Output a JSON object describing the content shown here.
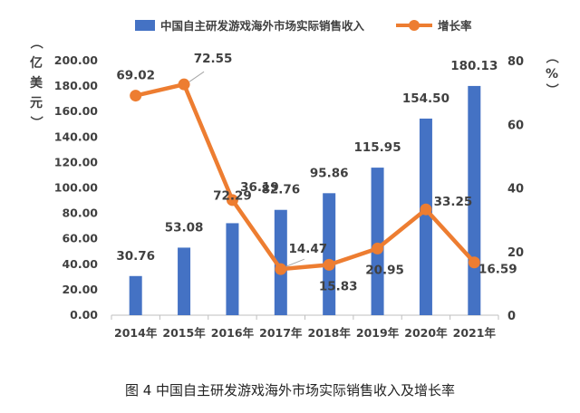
{
  "chart_data": {
    "type": "bar",
    "categories": [
      "2014年",
      "2015年",
      "2016年",
      "2017年",
      "2018年",
      "2019年",
      "2020年",
      "2021年"
    ],
    "series": [
      {
        "name": "中国自主研发游戏海外市场实际销售收入",
        "type": "bar",
        "axis": "left",
        "values": [
          30.76,
          53.08,
          72.29,
          82.76,
          95.86,
          115.95,
          154.5,
          180.13
        ],
        "labels": [
          "30.76",
          "53.08",
          "72.29",
          "82.76",
          "95.86",
          "115.95",
          "154.50",
          "180.13"
        ]
      },
      {
        "name": "增长率",
        "type": "line",
        "axis": "right",
        "values": [
          69.02,
          72.55,
          36.19,
          14.47,
          15.83,
          20.95,
          33.25,
          16.59
        ],
        "labels": [
          "69.02",
          "72.55",
          "36.19",
          "14.47",
          "15.83",
          "20.95",
          "33.25",
          "16.59"
        ]
      }
    ],
    "y_left": {
      "label": "（亿美元）",
      "range": [
        0,
        200
      ],
      "ticks": [
        "0.00",
        "20.00",
        "40.00",
        "60.00",
        "80.00",
        "100.00",
        "120.00",
        "140.00",
        "160.00",
        "180.00",
        "200.00"
      ]
    },
    "y_right": {
      "label": "（%）",
      "range": [
        0,
        80
      ],
      "ticks": [
        "0",
        "20",
        "40",
        "60",
        "80"
      ]
    },
    "legend_position": "top",
    "grid": false,
    "colors": {
      "bar": "#4472C4",
      "line": "#ED7D31",
      "text": "#404040",
      "axis": "#BFBFBF"
    }
  },
  "caption": "图 4 中国自主研发游戏海外市场实际销售收入及增长率"
}
